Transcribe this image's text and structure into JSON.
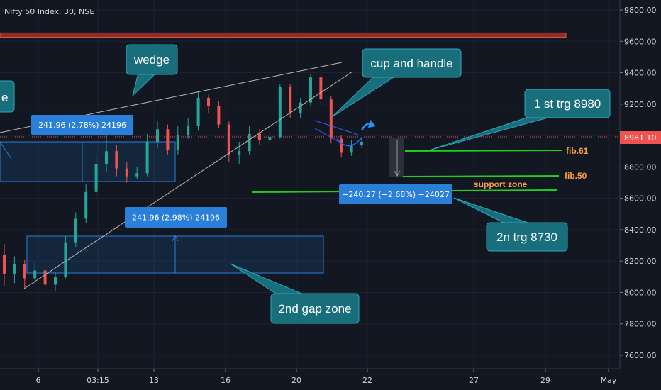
{
  "header": {
    "title": "Nifty 50 Index, 30, NSE"
  },
  "colors": {
    "background": "#131722",
    "grid": "#1e2230",
    "up": "#26a69a",
    "down": "#ef5350",
    "teal_box": "#196e7c",
    "blue_box": "#2a7fd8",
    "green_line": "#1fd01f",
    "fib_text": "#f7a046",
    "resistance": "#c0392b",
    "text": "#d1d4dc"
  },
  "chart_data": {
    "type": "candlestick",
    "symbol": "Nifty 50 Index",
    "interval": "30",
    "exchange": "NSE",
    "y_axis": {
      "min": 7530,
      "max": 9870,
      "ticks": [
        9800,
        9600,
        9400,
        9200,
        9000,
        8800,
        8600,
        8400,
        8200,
        8000,
        7800,
        7600
      ],
      "tick_labels": [
        "9800.00",
        "9600.00",
        "9400.00",
        "9200.00",
        "9000.00",
        "8800.00",
        "8600.00",
        "8400.00",
        "8200.00",
        "8000.00",
        "7800.00",
        "7600.00"
      ]
    },
    "x_axis": {
      "labels": [
        "6",
        "03:15",
        "13",
        "16",
        "20",
        "22",
        "27",
        "29",
        "May"
      ]
    },
    "last_price": "8981.10",
    "candles": [
      [
        8240,
        8120,
        8310,
        8040
      ],
      [
        8120,
        8180,
        8230,
        8060
      ],
      [
        8180,
        8090,
        8210,
        8020
      ],
      [
        8090,
        8140,
        8190,
        8050
      ],
      [
        8140,
        8050,
        8170,
        8010
      ],
      [
        8050,
        8100,
        8130,
        8010
      ],
      [
        8100,
        8320,
        8360,
        8090
      ],
      [
        8320,
        8470,
        8510,
        8290
      ],
      [
        8470,
        8640,
        8690,
        8440
      ],
      [
        8640,
        8820,
        8870,
        8610
      ],
      [
        8820,
        8900,
        9010,
        8770
      ],
      [
        8900,
        8790,
        8940,
        8740
      ],
      [
        8790,
        8740,
        8830,
        8700
      ],
      [
        8740,
        8760,
        8800,
        8720
      ],
      [
        8760,
        8960,
        9010,
        8740
      ],
      [
        8960,
        9040,
        9090,
        8920
      ],
      [
        9040,
        8910,
        9070,
        8880
      ],
      [
        8910,
        9000,
        9060,
        8880
      ],
      [
        9000,
        9060,
        9110,
        8980
      ],
      [
        9060,
        9240,
        9280,
        9030
      ],
      [
        9240,
        9190,
        9260,
        9140
      ],
      [
        9190,
        9070,
        9220,
        9050
      ],
      [
        9070,
        8880,
        9090,
        8830
      ],
      [
        8880,
        8900,
        8960,
        8820
      ],
      [
        8900,
        9010,
        9060,
        8880
      ],
      [
        9010,
        8970,
        9040,
        8940
      ],
      [
        8970,
        8990,
        9020,
        8950
      ],
      [
        8990,
        9310,
        9330,
        8980
      ],
      [
        9310,
        9140,
        9330,
        9110
      ],
      [
        9140,
        9210,
        9240,
        9110
      ],
      [
        9210,
        9370,
        9390,
        9190
      ],
      [
        9370,
        9230,
        9390,
        9190
      ],
      [
        9230,
        8980,
        9250,
        8950
      ],
      [
        8980,
        8890,
        9000,
        8860
      ],
      [
        8890,
        8940,
        8970,
        8870
      ],
      [
        8940,
        8960,
        8990,
        8920
      ]
    ],
    "annotations": [
      "wedge",
      "cup and handle",
      "1 st trg 8980",
      "2n trg 8730",
      "2nd gap zone",
      "241.96 (2.78%) 24196",
      "241.96 (2.98%) 24196",
      "−240.27 (−2.68%) −24027",
      "fib.61",
      "fib.50",
      "support zone",
      "e"
    ],
    "levels": {
      "resistance": 9640,
      "fib.61": 8900,
      "fib.50": 8740,
      "support zone": 8640
    }
  }
}
